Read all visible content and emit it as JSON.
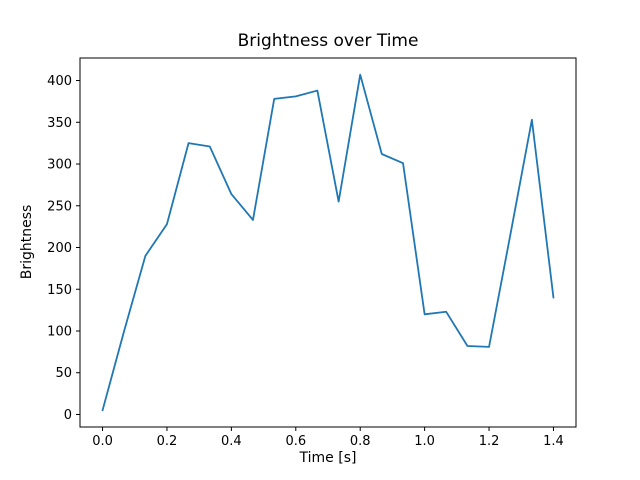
{
  "figure": {
    "title": "Brightness over Time",
    "xlabel": "Time [s]",
    "ylabel": "Brightness"
  },
  "chart_data": {
    "type": "line",
    "title": "Brightness over Time",
    "xlabel": "Time [s]",
    "ylabel": "Brightness",
    "x": [
      0.0,
      0.067,
      0.133,
      0.2,
      0.267,
      0.333,
      0.4,
      0.467,
      0.533,
      0.6,
      0.667,
      0.733,
      0.8,
      0.867,
      0.933,
      1.0,
      1.067,
      1.133,
      1.2,
      1.267,
      1.333,
      1.4
    ],
    "series": [
      {
        "name": "brightness",
        "color": "#1f77b4",
        "values": [
          5,
          100,
          190,
          228,
          325,
          321,
          264,
          233,
          378,
          381,
          388,
          255,
          407,
          312,
          301,
          120,
          123,
          82,
          81,
          217,
          353,
          140
        ]
      }
    ],
    "xlim": [
      -0.07,
      1.47
    ],
    "ylim": [
      -15,
      427
    ],
    "xticks": [
      0.0,
      0.2,
      0.4,
      0.6,
      0.8,
      1.0,
      1.2,
      1.4
    ],
    "yticks": [
      0,
      50,
      100,
      150,
      200,
      250,
      300,
      350,
      400
    ],
    "grid": false,
    "legend": false,
    "background": "#ffffff",
    "spine_color": "#000000"
  }
}
